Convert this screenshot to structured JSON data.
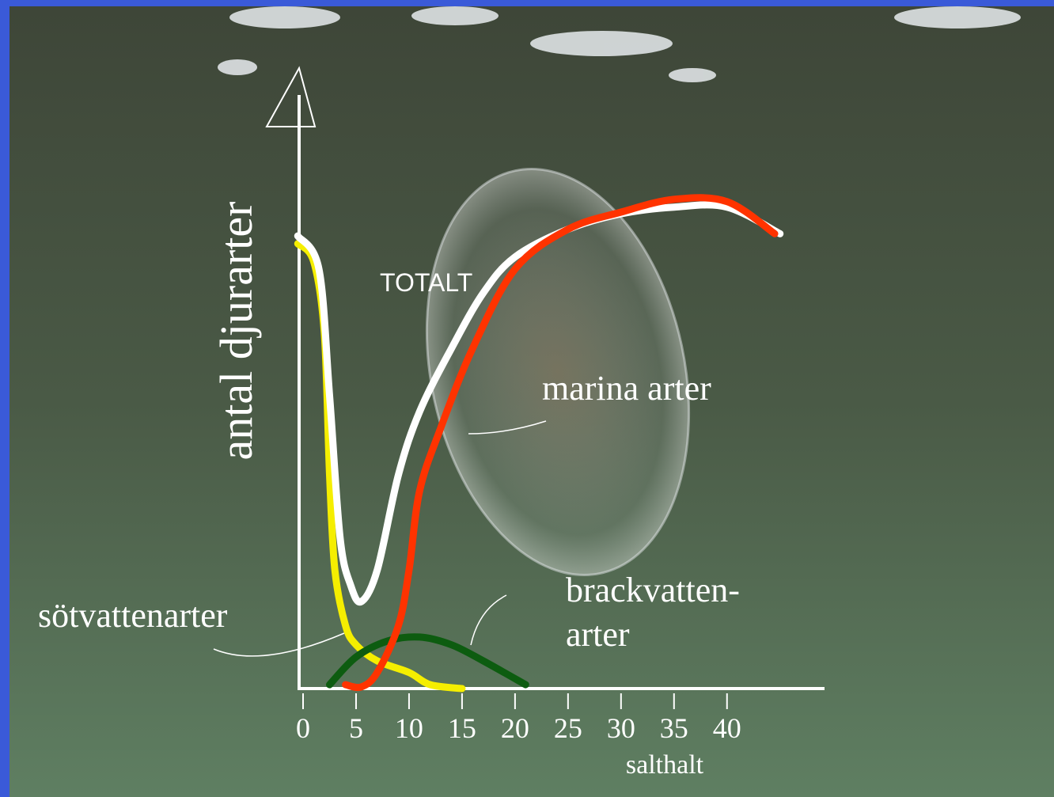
{
  "chart_data": {
    "type": "line",
    "y_label": "antal djurarter",
    "x_label": "salthalt",
    "xlim": [
      -0.5,
      49.5
    ],
    "ylim": [
      0,
      112
    ],
    "xticks": [
      0,
      5,
      10,
      15,
      20,
      25,
      30,
      35,
      40
    ],
    "series": [
      {
        "name": "sötvattenarter",
        "color": "#f5ee00",
        "x": [
          -0.5,
          1,
          2,
          2.5,
          3,
          4,
          5,
          7,
          10,
          12,
          15
        ],
        "values": [
          80.3,
          77.1,
          64.3,
          38.6,
          21.4,
          11.4,
          7.9,
          5,
          2.9,
          0.7,
          0
        ]
      },
      {
        "name": [
          "brackvatten-",
          "arter"
        ],
        "color": "#0d5c10",
        "x": [
          2.5,
          5,
          8,
          11,
          14,
          17,
          21
        ],
        "values": [
          0.7,
          5.7,
          8.6,
          9.3,
          7.9,
          5,
          0.7
        ]
      },
      {
        "name": "TOTALT",
        "color": "#ffffff",
        "x": [
          -0.5,
          1.5,
          2.5,
          3.5,
          4.5,
          5.5,
          7,
          9,
          11,
          14,
          17,
          20,
          25,
          30,
          35,
          40,
          45
        ],
        "values": [
          81.7,
          75.7,
          52.9,
          27.1,
          18.6,
          15.7,
          21.4,
          38.6,
          50,
          61.4,
          71.4,
          77.9,
          82.9,
          85.7,
          86.9,
          86.9,
          82.1
        ]
      },
      {
        "name": "marina arter",
        "color": "#ff3300",
        "x": [
          4,
          5.5,
          7,
          9,
          10,
          11,
          13,
          16,
          20,
          25,
          30,
          35,
          40,
          44.5
        ],
        "values": [
          0.7,
          0.3,
          2.9,
          11.4,
          21.4,
          35.7,
          47.1,
          61.4,
          75.7,
          82.9,
          86,
          88.3,
          87.9,
          82.1
        ]
      }
    ]
  }
}
